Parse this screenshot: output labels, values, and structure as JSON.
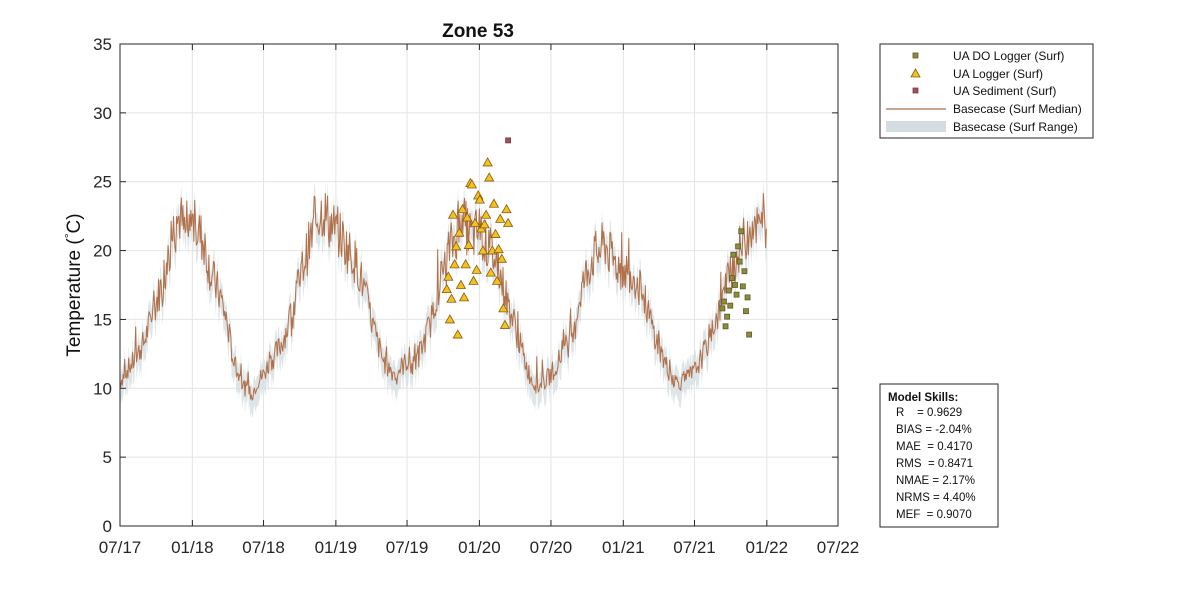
{
  "chart_data": {
    "type": "line",
    "title": "Zone 53",
    "ylabel": "Temperature (°C)",
    "ylabel_main": "Temperature ",
    "ylabel_paren_open": "(",
    "ylabel_degree": "°",
    "ylabel_unit": "C)",
    "xlabel": "",
    "x_tick_labels": [
      "07/17",
      "01/18",
      "07/18",
      "01/19",
      "07/19",
      "01/20",
      "07/20",
      "01/21",
      "07/21",
      "01/22",
      "07/22"
    ],
    "x_tick_values": [
      "2017-07-01",
      "2018-01-01",
      "2018-07-01",
      "2019-01-01",
      "2019-07-01",
      "2020-01-01",
      "2020-07-01",
      "2021-01-01",
      "2021-07-01",
      "2022-01-01",
      "2022-07-01"
    ],
    "xlim": [
      "2017-07-01",
      "2022-07-01"
    ],
    "y_ticks": [
      0,
      5,
      10,
      15,
      20,
      25,
      30,
      35
    ],
    "ylim": [
      0,
      35
    ],
    "grid": true,
    "legend_position": "outside-top-right",
    "legend": [
      {
        "label": "UA DO Logger (Surf)",
        "marker": "square",
        "color": "#8c8c3c"
      },
      {
        "label": "UA Logger (Surf)",
        "marker": "triangle",
        "color": "#f2c21e"
      },
      {
        "label": "UA Sediment (Surf)",
        "marker": "square",
        "color": "#a0505a"
      },
      {
        "label": "Basecase (Surf Median)",
        "marker": "line",
        "color": "#b0714a"
      },
      {
        "label": "Basecase (Surf Range)",
        "marker": "band",
        "color": "#d3dce0"
      }
    ],
    "series": [
      {
        "name": "Basecase (Surf Median)",
        "color": "#b0714a",
        "x": [
          "2017-07-01",
          "2017-07-15",
          "2017-08-01",
          "2017-08-15",
          "2017-09-01",
          "2017-09-15",
          "2017-10-01",
          "2017-10-15",
          "2017-11-01",
          "2017-11-15",
          "2017-12-01",
          "2017-12-15",
          "2018-01-01",
          "2018-01-15",
          "2018-02-01",
          "2018-02-15",
          "2018-03-01",
          "2018-03-15",
          "2018-04-01",
          "2018-04-15",
          "2018-05-01",
          "2018-05-15",
          "2018-06-01",
          "2018-06-15",
          "2018-07-01",
          "2018-07-15",
          "2018-08-01",
          "2018-08-15",
          "2018-09-01",
          "2018-09-15",
          "2018-10-01",
          "2018-10-15",
          "2018-11-01",
          "2018-11-15",
          "2018-12-01",
          "2018-12-15",
          "2019-01-01",
          "2019-01-15",
          "2019-02-01",
          "2019-02-15",
          "2019-03-01",
          "2019-03-15",
          "2019-04-01",
          "2019-04-15",
          "2019-05-01",
          "2019-05-15",
          "2019-06-01",
          "2019-06-15",
          "2019-07-01",
          "2019-07-15",
          "2019-08-01",
          "2019-08-15",
          "2019-09-01",
          "2019-09-15",
          "2019-10-01",
          "2019-10-15",
          "2019-11-01",
          "2019-11-15",
          "2019-12-01",
          "2019-12-15",
          "2020-01-01",
          "2020-01-15",
          "2020-02-01",
          "2020-02-15",
          "2020-03-01",
          "2020-03-15",
          "2020-04-01",
          "2020-04-15",
          "2020-05-01",
          "2020-05-15",
          "2020-06-01",
          "2020-06-15",
          "2020-07-01",
          "2020-07-15",
          "2020-08-01",
          "2020-08-15",
          "2020-09-01",
          "2020-09-15",
          "2020-10-01",
          "2020-10-15",
          "2020-11-01",
          "2020-11-15",
          "2020-12-01",
          "2020-12-15",
          "2021-01-01",
          "2021-01-15",
          "2021-02-01",
          "2021-02-15",
          "2021-03-01",
          "2021-03-15",
          "2021-04-01",
          "2021-04-15",
          "2021-05-01",
          "2021-05-15",
          "2021-06-01",
          "2021-06-15",
          "2021-07-01",
          "2021-07-15",
          "2021-08-01",
          "2021-08-15",
          "2021-09-01",
          "2021-09-15",
          "2021-10-01",
          "2021-10-15",
          "2021-11-01",
          "2021-11-15",
          "2021-12-01",
          "2021-12-15",
          "2022-01-01"
        ],
        "values": [
          10.5,
          11.2,
          11.8,
          12.5,
          13.4,
          14.8,
          16.2,
          17.6,
          19.5,
          21.8,
          22.5,
          21.0,
          22.0,
          21.5,
          20.5,
          18.5,
          17.5,
          16.5,
          14.5,
          12.0,
          10.8,
          10.0,
          9.5,
          10.5,
          11.0,
          11.8,
          12.5,
          13.2,
          14.5,
          16.0,
          17.8,
          19.5,
          21.0,
          22.5,
          23.0,
          22.0,
          21.5,
          21.0,
          20.0,
          19.5,
          18.5,
          17.0,
          15.0,
          13.5,
          12.0,
          11.5,
          11.0,
          11.5,
          12.0,
          11.5,
          12.5,
          13.5,
          15.0,
          17.0,
          18.5,
          20.0,
          21.0,
          22.5,
          21.5,
          21.0,
          21.5,
          20.5,
          20.0,
          19.0,
          17.5,
          16.0,
          14.5,
          13.0,
          11.5,
          10.5,
          10.0,
          10.5,
          11.0,
          11.8,
          12.5,
          13.5,
          15.0,
          17.0,
          18.5,
          19.5,
          20.0,
          20.5,
          19.5,
          19.0,
          18.5,
          18.5,
          18.0,
          17.0,
          16.0,
          14.5,
          13.0,
          12.0,
          11.0,
          10.5,
          10.5,
          10.8,
          11.2,
          12.0,
          13.0,
          14.5,
          15.5,
          17.0,
          18.5,
          19.5,
          20.5,
          21.5,
          22.5,
          21.0,
          22.5
        ]
      },
      {
        "name": "UA Logger (Surf)",
        "color": "#f2c21e",
        "x": [
          "2019-10-10",
          "2019-10-14",
          "2019-10-18",
          "2019-10-22",
          "2019-10-26",
          "2019-10-30",
          "2019-11-03",
          "2019-11-07",
          "2019-11-11",
          "2019-11-15",
          "2019-11-19",
          "2019-11-23",
          "2019-11-27",
          "2019-12-01",
          "2019-12-05",
          "2019-12-09",
          "2019-12-13",
          "2019-12-17",
          "2019-12-21",
          "2019-12-25",
          "2019-12-29",
          "2020-01-02",
          "2020-01-06",
          "2020-01-10",
          "2020-01-14",
          "2020-01-18",
          "2020-01-22",
          "2020-01-26",
          "2020-01-30",
          "2020-02-03",
          "2020-02-07",
          "2020-02-11",
          "2020-02-15",
          "2020-02-19",
          "2020-02-23",
          "2020-02-27",
          "2020-03-02",
          "2020-03-06",
          "2020-03-10",
          "2020-03-14"
        ],
        "values": [
          17.2,
          18.1,
          15.0,
          16.5,
          22.6,
          19.0,
          20.3,
          13.9,
          21.3,
          17.5,
          23.0,
          16.6,
          19.0,
          22.4,
          20.4,
          24.9,
          24.8,
          17.8,
          22.0,
          18.6,
          24.0,
          23.7,
          21.6,
          20.0,
          21.9,
          22.6,
          26.4,
          25.3,
          18.4,
          20.0,
          23.4,
          21.2,
          17.8,
          20.1,
          22.3,
          19.4,
          15.8,
          14.6,
          23.0,
          22.0
        ]
      },
      {
        "name": "UA DO Logger (Surf)",
        "color": "#8c8c3c",
        "x": [
          "2021-09-10",
          "2021-09-14",
          "2021-09-18",
          "2021-09-22",
          "2021-09-26",
          "2021-09-30",
          "2021-10-04",
          "2021-10-08",
          "2021-10-12",
          "2021-10-16",
          "2021-10-20",
          "2021-10-24",
          "2021-10-28",
          "2021-11-01",
          "2021-11-05",
          "2021-11-09",
          "2021-11-13",
          "2021-11-17"
        ],
        "values": [
          15.8,
          16.3,
          14.5,
          15.2,
          17.1,
          16.0,
          18.0,
          19.7,
          17.5,
          16.8,
          20.3,
          19.2,
          21.4,
          17.4,
          18.5,
          15.6,
          16.6,
          13.9
        ]
      },
      {
        "name": "UA Sediment (Surf)",
        "color": "#a0505a",
        "x": [
          "2020-03-14"
        ],
        "values": [
          28.0
        ]
      }
    ]
  },
  "model_skills": {
    "heading": "Model Skills:",
    "lines": [
      "R    = 0.9629",
      "BIAS = -2.04%",
      "MAE  = 0.4170",
      "RMS  = 0.8471",
      "NMAE = 2.17%",
      "NRMS = 4.40%",
      "MEF  = 0.9070"
    ]
  }
}
